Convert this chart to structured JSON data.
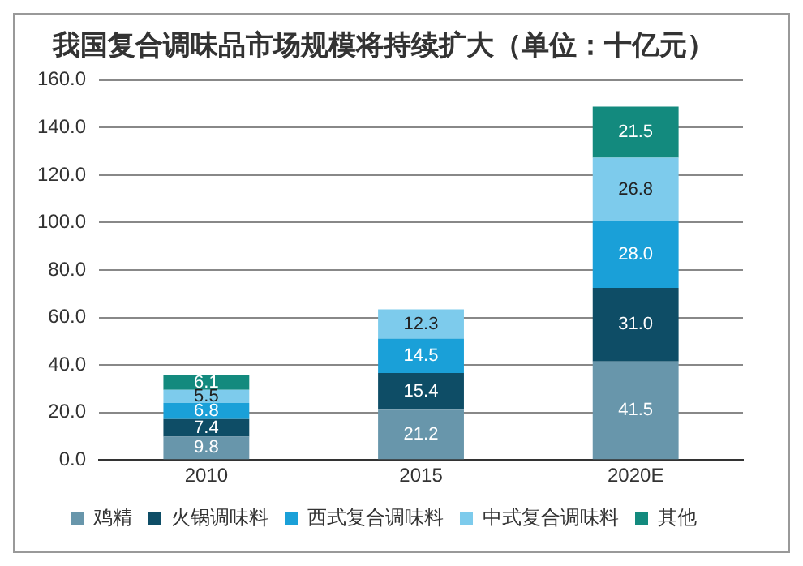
{
  "chart_data": {
    "type": "bar",
    "title": "我国复合调味品市场规模将持续扩大（单位：十亿元）",
    "categories": [
      "2010",
      "2015",
      "2020E"
    ],
    "stacked": true,
    "series": [
      {
        "name": "鸡精",
        "color": "#6896ab",
        "values": [
          9.8,
          21.2,
          41.5
        ],
        "value_labels": [
          "9.8",
          "21.2",
          "41.5"
        ]
      },
      {
        "name": "火锅调味料",
        "color": "#0e4d66",
        "values": [
          7.4,
          15.4,
          31.0
        ],
        "value_labels": [
          "7.4",
          "15.4",
          "31.0"
        ]
      },
      {
        "name": "西式复合调味料",
        "color": "#1aa0d8",
        "values": [
          6.8,
          14.5,
          28.0
        ],
        "value_labels": [
          "6.8",
          "14.5",
          "28.0"
        ]
      },
      {
        "name": "中式复合调味料",
        "color": "#7dcbec",
        "values": [
          5.5,
          12.3,
          26.8
        ],
        "value_labels": [
          "5.5",
          "12.3",
          "26.8"
        ]
      },
      {
        "name": "其他",
        "color": "#138a7e",
        "values": [
          6.1,
          null,
          21.5
        ],
        "value_labels": [
          "6.1",
          null,
          "21.5"
        ]
      }
    ],
    "ylim": [
      0,
      160
    ],
    "yticks": [
      {
        "value": 0,
        "label": "0.0"
      },
      {
        "value": 20,
        "label": "20.0"
      },
      {
        "value": 40,
        "label": "40.0"
      },
      {
        "value": 60,
        "label": "60.0"
      },
      {
        "value": 80,
        "label": "80.0"
      },
      {
        "value": 100,
        "label": "100.0"
      },
      {
        "value": 120,
        "label": "120.0"
      },
      {
        "value": 140,
        "label": "140.0"
      },
      {
        "value": 160,
        "label": "160.0"
      }
    ],
    "grid": "y",
    "legend": "bottom"
  }
}
